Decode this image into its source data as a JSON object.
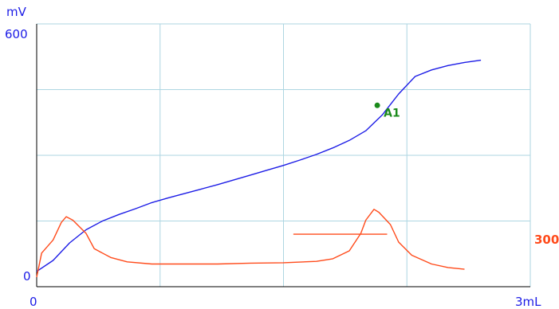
{
  "chart_data": {
    "type": "line",
    "xlabel": "",
    "ylabel": "mV",
    "x_unit": "mL",
    "xlim": [
      0,
      3
    ],
    "ylim": [
      0,
      600
    ],
    "x_tick_labels": [
      "0",
      "3mL"
    ],
    "y_tick_labels": [
      "0",
      "600"
    ],
    "y2_label": "300",
    "grid": true,
    "series": [
      {
        "color": "#1c1ce6",
        "axis": "left",
        "points": [
          [
            0.0,
            35
          ],
          [
            0.1,
            60
          ],
          [
            0.2,
            100
          ],
          [
            0.3,
            130
          ],
          [
            0.4,
            150
          ],
          [
            0.5,
            165
          ],
          [
            0.6,
            178
          ],
          [
            0.7,
            192
          ],
          [
            0.8,
            203
          ],
          [
            0.9,
            213
          ],
          [
            1.0,
            223
          ],
          [
            1.1,
            233
          ],
          [
            1.2,
            244
          ],
          [
            1.3,
            255
          ],
          [
            1.4,
            266
          ],
          [
            1.5,
            277
          ],
          [
            1.6,
            289
          ],
          [
            1.7,
            302
          ],
          [
            1.8,
            317
          ],
          [
            1.9,
            334
          ],
          [
            2.0,
            356
          ],
          [
            2.1,
            392
          ],
          [
            2.2,
            440
          ],
          [
            2.3,
            480
          ],
          [
            2.4,
            495
          ],
          [
            2.5,
            505
          ],
          [
            2.6,
            512
          ],
          [
            2.7,
            517
          ]
        ]
      },
      {
        "color": "#ff4a1a",
        "axis": "right",
        "points": [
          [
            0.0,
            0
          ],
          [
            0.03,
            55
          ],
          [
            0.1,
            85
          ],
          [
            0.15,
            125
          ],
          [
            0.18,
            138
          ],
          [
            0.22,
            130
          ],
          [
            0.3,
            100
          ],
          [
            0.35,
            65
          ],
          [
            0.45,
            45
          ],
          [
            0.55,
            35
          ],
          [
            0.7,
            30
          ],
          [
            0.9,
            30
          ],
          [
            1.1,
            30
          ],
          [
            1.3,
            32
          ],
          [
            1.5,
            33
          ],
          [
            1.7,
            36
          ],
          [
            1.8,
            42
          ],
          [
            1.9,
            60
          ],
          [
            1.97,
            100
          ],
          [
            2.0,
            130
          ],
          [
            2.05,
            155
          ],
          [
            2.08,
            148
          ],
          [
            2.15,
            120
          ],
          [
            2.2,
            80
          ],
          [
            2.28,
            50
          ],
          [
            2.4,
            30
          ],
          [
            2.5,
            22
          ],
          [
            2.6,
            18
          ]
        ]
      }
    ],
    "reference_line": {
      "color": "#ff4a1a",
      "axis": "right",
      "y": 98,
      "x_from": 1.56,
      "x_to": 2.13
    },
    "annotations": [
      {
        "label": "A1",
        "x": 2.07,
        "y": 414,
        "color": "#1a8a1a"
      }
    ]
  }
}
